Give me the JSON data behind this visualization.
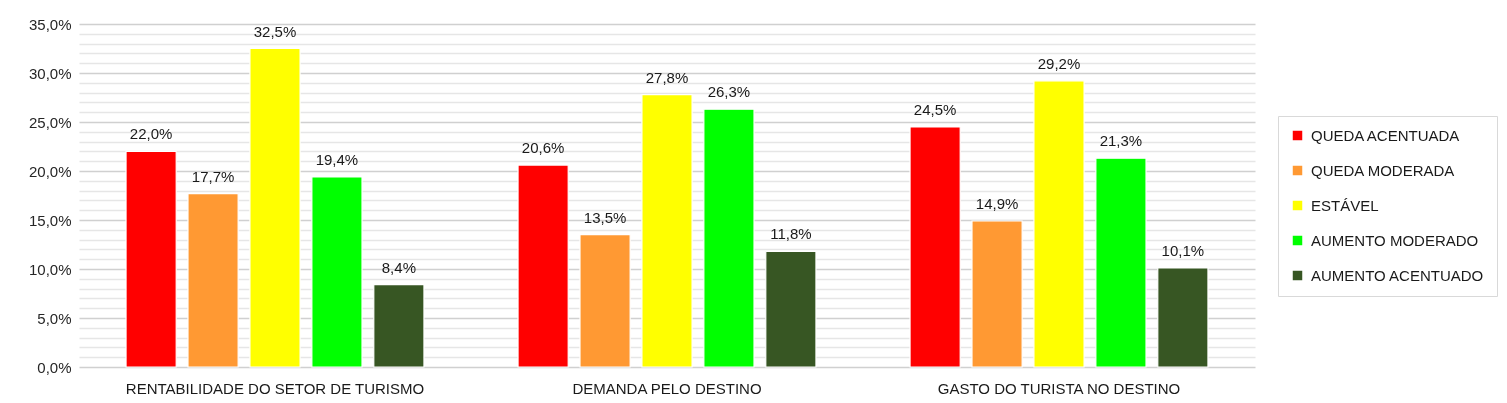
{
  "chart_data": {
    "type": "bar",
    "categories": [
      "RENTABILIDADE DO SETOR DE TURISMO",
      "DEMANDA PELO DESTINO",
      "GASTO DO TURISTA NO DESTINO"
    ],
    "series": [
      {
        "name": "QUEDA ACENTUADA",
        "color": "#ff0000",
        "values": [
          22.0,
          20.6,
          24.5
        ],
        "value_labels": [
          "22,0%",
          "20,6%",
          "24,5%"
        ]
      },
      {
        "name": "QUEDA MODERADA",
        "color": "#ff9933",
        "values": [
          17.7,
          13.5,
          14.9
        ],
        "value_labels": [
          "17,7%",
          "13,5%",
          "14,9%"
        ]
      },
      {
        "name": "ESTÁVEL",
        "color": "#ffff00",
        "values": [
          32.5,
          27.8,
          29.2
        ],
        "value_labels": [
          "32,5%",
          "27,8%",
          "29,2%"
        ]
      },
      {
        "name": "AUMENTO MODERADO",
        "color": "#00ff00",
        "values": [
          19.4,
          26.3,
          21.3
        ],
        "value_labels": [
          "19,4%",
          "26,3%",
          "21,3%"
        ]
      },
      {
        "name": "AUMENTO ACENTUADO",
        "color": "#375623",
        "values": [
          8.4,
          11.8,
          10.1
        ],
        "value_labels": [
          "8,4%",
          "11,8%",
          "10,1%"
        ]
      }
    ],
    "ylim": [
      0,
      35
    ],
    "yticks": [
      {
        "value": 0,
        "label": "0,0%"
      },
      {
        "value": 1,
        "label": null
      },
      {
        "value": 2,
        "label": null
      },
      {
        "value": 3,
        "label": null
      },
      {
        "value": 4,
        "label": null
      },
      {
        "value": 5,
        "label": "5,0%"
      },
      {
        "value": 6,
        "label": null
      },
      {
        "value": 7,
        "label": null
      },
      {
        "value": 8,
        "label": null
      },
      {
        "value": 9,
        "label": null
      },
      {
        "value": 10,
        "label": "10,0%"
      },
      {
        "value": 11,
        "label": null
      },
      {
        "value": 12,
        "label": null
      },
      {
        "value": 13,
        "label": null
      },
      {
        "value": 14,
        "label": null
      },
      {
        "value": 15,
        "label": "15,0%"
      },
      {
        "value": 16,
        "label": null
      },
      {
        "value": 17,
        "label": null
      },
      {
        "value": 18,
        "label": null
      },
      {
        "value": 19,
        "label": null
      },
      {
        "value": 20,
        "label": "20,0%"
      },
      {
        "value": 21,
        "label": null
      },
      {
        "value": 22,
        "label": null
      },
      {
        "value": 23,
        "label": null
      },
      {
        "value": 24,
        "label": null
      },
      {
        "value": 25,
        "label": "25,0%"
      },
      {
        "value": 26,
        "label": null
      },
      {
        "value": 27,
        "label": null
      },
      {
        "value": 28,
        "label": null
      },
      {
        "value": 29,
        "label": null
      },
      {
        "value": 30,
        "label": "30,0%"
      },
      {
        "value": 31,
        "label": null
      },
      {
        "value": 32,
        "label": null
      },
      {
        "value": 33,
        "label": null
      },
      {
        "value": 34,
        "label": null
      },
      {
        "value": 35,
        "label": "35,0%"
      }
    ],
    "grid": true,
    "legend": "right"
  }
}
